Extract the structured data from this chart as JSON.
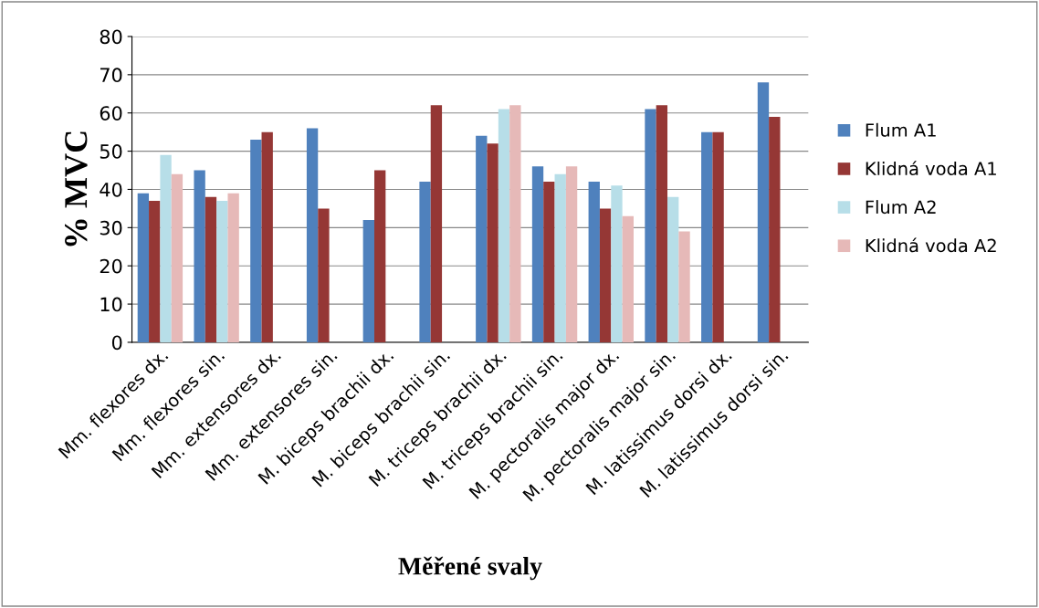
{
  "chart_data": {
    "type": "bar",
    "xlabel": "Měřené svaly",
    "ylabel": "% MVC",
    "categories": [
      "Mm. flexores dx.",
      "Mm. flexores sin.",
      "Mm. extensores dx.",
      "Mm. extensores sin.",
      "M. biceps brachii dx.",
      "M. biceps brachii sin.",
      "M. triceps brachii dx.",
      "M. triceps brachii sin.",
      "M. pectoralis major dx.",
      "M. pectoralis major sin.",
      "M. latissimus dorsi dx.",
      "M. latissimus dorsi sin."
    ],
    "series": [
      {
        "name": "Flum A1",
        "color": "#4f81bd",
        "values": [
          39,
          45,
          53,
          56,
          32,
          42,
          54,
          46,
          42,
          61,
          55,
          68
        ]
      },
      {
        "name": "Klidná voda A1",
        "color": "#953735",
        "values": [
          37,
          38,
          55,
          35,
          45,
          62,
          52,
          42,
          35,
          62,
          55,
          59
        ]
      },
      {
        "name": "Flum A2",
        "color": "#b7dee8",
        "values": [
          49,
          37,
          null,
          null,
          null,
          null,
          61,
          44,
          41,
          38,
          null,
          null
        ]
      },
      {
        "name": "Klidná voda A2",
        "color": "#e6b9b8",
        "values": [
          44,
          39,
          null,
          null,
          null,
          null,
          62,
          46,
          33,
          29,
          null,
          null
        ]
      }
    ],
    "ylim": [
      0,
      80
    ],
    "yticks": [
      0,
      10,
      20,
      30,
      40,
      50,
      60,
      70,
      80
    ],
    "grid": "y",
    "legend": "right"
  }
}
